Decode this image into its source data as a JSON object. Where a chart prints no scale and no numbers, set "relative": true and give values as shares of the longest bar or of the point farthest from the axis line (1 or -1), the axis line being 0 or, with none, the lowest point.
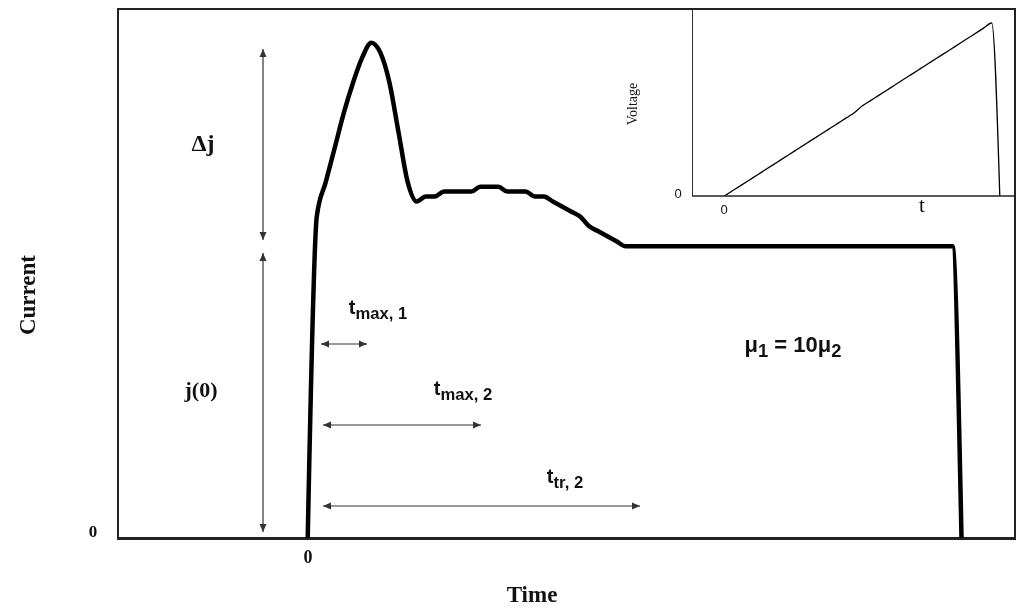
{
  "chart_data": [
    {
      "type": "line",
      "xlabel": "Time",
      "ylabel": "Current",
      "relative": true,
      "categories": [
        null,
        null,
        null,
        null,
        null,
        null,
        null,
        null,
        null,
        null,
        null,
        null,
        null,
        null,
        null,
        null,
        null,
        null,
        null,
        null,
        null,
        null,
        null,
        null,
        null,
        null,
        null,
        null,
        null,
        null,
        null,
        null,
        null,
        null,
        null,
        null,
        null,
        null,
        null,
        null,
        null,
        null,
        null,
        null,
        null,
        null,
        null,
        null,
        null,
        null,
        null,
        null,
        null,
        null,
        null,
        null,
        null,
        null,
        null,
        null,
        null,
        null,
        null,
        null,
        null,
        null,
        null,
        null,
        null,
        null,
        null,
        null,
        null,
        null,
        null,
        null,
        null,
        null,
        null,
        null,
        null,
        null,
        null,
        null,
        null,
        null,
        null,
        null,
        null,
        null,
        null,
        null,
        null,
        null,
        null,
        null,
        null,
        null,
        null,
        null
      ],
      "series": [
        {
          "color": "#000000",
          "values": [
            null,
            null,
            null,
            null,
            null,
            null,
            null,
            null,
            null,
            null,
            null,
            null,
            null,
            null,
            null,
            null,
            null,
            null,
            null,
            null,
            null,
            0,
            0.65,
            0.72,
            0.79,
            0.86,
            0.92,
            0.97,
            1,
            0.98,
            0.92,
            0.82,
            0.72,
            0.68,
            0.69,
            0.69,
            0.7,
            0.7,
            0.7,
            0.7,
            0.71,
            0.71,
            0.71,
            0.7,
            0.7,
            0.7,
            0.69,
            0.69,
            0.68,
            0.67,
            0.66,
            0.65,
            0.63,
            0.62,
            0.61,
            0.6,
            0.59,
            0.59,
            0.59,
            0.59,
            0.59,
            0.59,
            0.59,
            0.59,
            0.59,
            0.59,
            0.59,
            0.59,
            0.59,
            0.59,
            0.59,
            0.59,
            0.59,
            0.59,
            0.59,
            0.59,
            0.59,
            0.59,
            0.59,
            0.59,
            0.59,
            0.59,
            0.59,
            0.59,
            0.59,
            0.59,
            0.59,
            0.59,
            0.59,
            0.59,
            0.59,
            0.59,
            0.59,
            0,
            null,
            null,
            null,
            null,
            null,
            null
          ]
        }
      ],
      "annotations": [
        "Δj",
        "j(0)",
        "t$_{max, 1}$",
        "t$_{max, 2}$",
        "t$_{tr, 2}$",
        "μ$_{1}$ = 10μ$_{2}$",
        "0",
        "0"
      ]
    },
    {
      "type": "line",
      "xlabel": "t",
      "ylabel": "Voltage",
      "relative": true,
      "categories": [
        null,
        null,
        null,
        null,
        null,
        null,
        null,
        null,
        null,
        null,
        null,
        null,
        null,
        null,
        null,
        null,
        null,
        null,
        null,
        null,
        null,
        null,
        null,
        null,
        null,
        null,
        null,
        null,
        null,
        null,
        null,
        null,
        null,
        null,
        null,
        null,
        null,
        null,
        null,
        null,
        null
      ],
      "series": [
        {
          "color": "#000000",
          "values": [
            null,
            null,
            null,
            null,
            0,
            0.03,
            0.06,
            0.09,
            0.12,
            0.15,
            0.18,
            0.21,
            0.24,
            0.27,
            0.3,
            0.33,
            0.36,
            0.39,
            0.42,
            0.45,
            0.48,
            0.52,
            0.55,
            0.58,
            0.61,
            0.64,
            0.67,
            0.7,
            0.73,
            0.76,
            0.79,
            0.82,
            0.85,
            0.88,
            0.91,
            0.94,
            0.97,
            1,
            0,
            null,
            null
          ]
        }
      ],
      "annotations": [
        "0",
        "0"
      ]
    }
  ]
}
